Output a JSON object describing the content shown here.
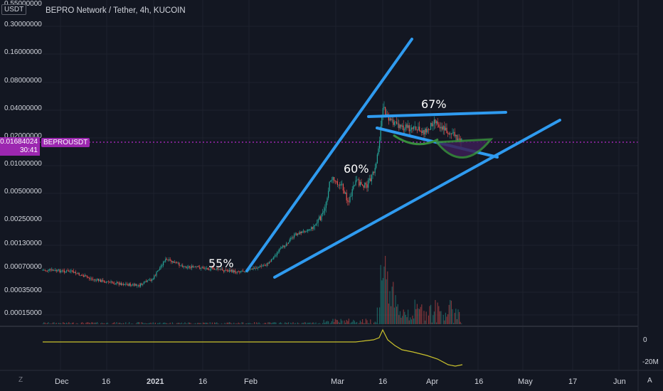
{
  "header": {
    "title": "BEPRO Network / Tether, 4h, KUCOIN",
    "unit": "USDT"
  },
  "price_axis": {
    "ticks": [
      "0.55000000",
      "0.30000000",
      "0.16000000",
      "0.08000000",
      "0.04000000",
      "0.02000000",
      "0.01000000",
      "0.00500000",
      "0.00250000",
      "0.00130000",
      "0.00070000",
      "0.00035000",
      "0.00015000"
    ]
  },
  "current_price": {
    "value": "0.01684024",
    "countdown": "30:41",
    "symbol": "BEPROUSDT"
  },
  "indicator_axis": {
    "ticks": [
      "0",
      "-20M"
    ]
  },
  "time_axis": {
    "ticks": [
      "Dec",
      "16",
      "2021",
      "16",
      "Feb",
      "Mar",
      "16",
      "Apr",
      "16",
      "May",
      "17",
      "Jun"
    ]
  },
  "annotations": [
    "55%",
    "60%",
    "67%"
  ],
  "corner": {
    "left_label": "Z",
    "right_label": "A"
  },
  "colors": {
    "background": "#131722",
    "up": "#26a69a",
    "down": "#ef5350",
    "trendline": "#2196f3",
    "price_line": "#9c27b0",
    "indicator": "#c9c12c",
    "cup": "#2e7d32"
  },
  "chart_data": {
    "type": "candlestick",
    "title": "BEPRO Network / Tether, 4h, KUCOIN",
    "ylabel": "USDT",
    "y_scale": "log",
    "current_price": 0.01684024
  }
}
